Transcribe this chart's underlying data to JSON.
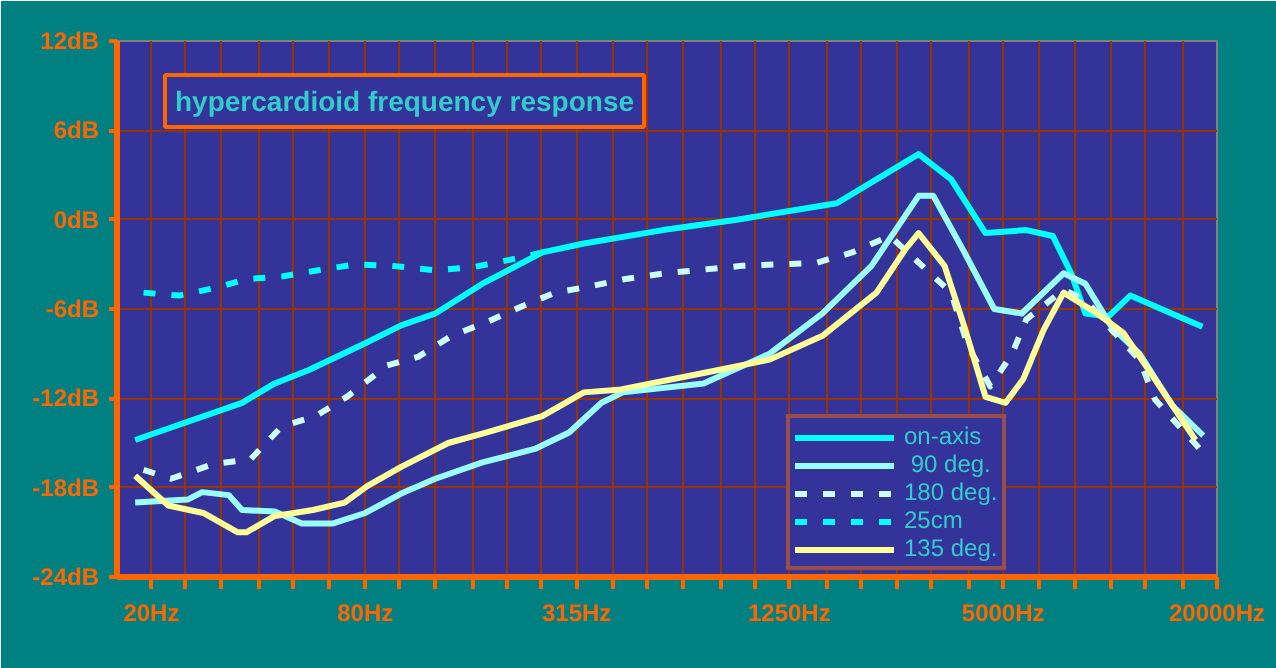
{
  "chart_data": {
    "type": "line",
    "title": "hypercardioid frequency response",
    "log": "x",
    "grid": true,
    "legend": "bottom right",
    "line_style": "solid",
    "marker": "none",
    "xlim": [
      16,
      20000
    ],
    "ylim": [
      -24,
      12
    ],
    "xticks": [
      {
        "value": 20,
        "label": "20Hz"
      },
      {
        "value": 25,
        "label": null
      },
      {
        "value": 31.5,
        "label": null
      },
      {
        "value": 40,
        "label": null
      },
      {
        "value": 50,
        "label": null
      },
      {
        "value": 63,
        "label": null
      },
      {
        "value": 80,
        "label": "80Hz"
      },
      {
        "value": 100,
        "label": null
      },
      {
        "value": 125,
        "label": null
      },
      {
        "value": 160,
        "label": null
      },
      {
        "value": 200,
        "label": null
      },
      {
        "value": 250,
        "label": null
      },
      {
        "value": 315,
        "label": "315Hz"
      },
      {
        "value": 400,
        "label": null
      },
      {
        "value": 500,
        "label": null
      },
      {
        "value": 630,
        "label": null
      },
      {
        "value": 800,
        "label": null
      },
      {
        "value": 1000,
        "label": null
      },
      {
        "value": 1250,
        "label": "1250Hz"
      },
      {
        "value": 1600,
        "label": null
      },
      {
        "value": 2000,
        "label": null
      },
      {
        "value": 2500,
        "label": null
      },
      {
        "value": 3150,
        "label": null
      },
      {
        "value": 4000,
        "label": null
      },
      {
        "value": 5000,
        "label": "5000Hz"
      },
      {
        "value": 6300,
        "label": null
      },
      {
        "value": 8000,
        "label": null
      },
      {
        "value": 10000,
        "label": null
      },
      {
        "value": 12500,
        "label": null
      },
      {
        "value": 16000,
        "label": null
      },
      {
        "value": 20000,
        "label": "20000Hz"
      }
    ],
    "yticks": [
      {
        "value": -24,
        "label": "-24dB"
      },
      {
        "value": -18,
        "label": "-18dB"
      },
      {
        "value": -12,
        "label": "-12dB"
      },
      {
        "value": -6,
        "label": "-6dB"
      },
      {
        "value": 0,
        "label": "0dB"
      },
      {
        "value": 6,
        "label": "6dB"
      },
      {
        "value": 12,
        "label": "12dB"
      }
    ],
    "series": [
      {
        "name": "on-axis",
        "color": "#00ffff",
        "x": [
          18,
          36,
          44.5,
          55.5,
          80,
          101,
          126,
          171,
          252,
          330,
          551,
          890,
          1700,
          2890,
          3570,
          4460,
          5810,
          6900,
          7770,
          8520,
          9900,
          11400,
          14900,
          18200
        ],
        "values": [
          -14.8,
          -12.3,
          -11.0,
          -10.1,
          -8.3,
          -7.1,
          -6.3,
          -4.3,
          -2.2,
          -1.6,
          -0.7,
          0,
          1.1,
          4.4,
          2.7,
          -0.9,
          -0.7,
          -1.1,
          -3.6,
          -6.3,
          -6.5,
          -5.1,
          -6.3,
          -7.2
        ]
      },
      {
        "name": " 90 deg.",
        "color": "#99ffff",
        "x": [
          18,
          25.3,
          27.8,
          33,
          36,
          44.5,
          53,
          65,
          80,
          101,
          126,
          171,
          240,
          300,
          370,
          425,
          717,
          1100,
          1550,
          2130,
          2890,
          3180,
          3890,
          4720,
          5640,
          7400,
          8520,
          10100,
          12100,
          15000,
          18300
        ],
        "values": [
          -19.0,
          -18.8,
          -18.3,
          -18.5,
          -19.5,
          -19.6,
          -20.4,
          -20.4,
          -19.7,
          -18.4,
          -17.4,
          -16.3,
          -15.4,
          -14.3,
          -12.3,
          -11.6,
          -11.0,
          -9.0,
          -6.3,
          -3.1,
          1.6,
          1.6,
          -2.2,
          -6.0,
          -6.3,
          -3.6,
          -4.3,
          -7.2,
          -9.0,
          -12.5,
          -14.5
        ]
      },
      {
        "name": "180 deg.",
        "color": "#ccffff",
        "line_style": "dashed",
        "x": [
          19,
          22.7,
          30,
          38,
          46.5,
          58,
          71,
          92,
          113,
          140,
          175,
          222,
          274,
          340,
          428,
          560,
          920,
          1490,
          1880,
          2400,
          3570,
          3980,
          4600,
          5300,
          5810,
          7400,
          8520,
          10100,
          12100,
          13400,
          17900
        ],
        "values": [
          -16.8,
          -17.4,
          -16.4,
          -16.1,
          -13.9,
          -13.2,
          -11.9,
          -9.8,
          -9.2,
          -7.8,
          -6.9,
          -5.8,
          -4.9,
          -4.5,
          -4.0,
          -3.6,
          -3.1,
          -2.9,
          -2.2,
          -1.1,
          -4.9,
          -8.5,
          -11.2,
          -9.0,
          -6.7,
          -4.7,
          -5.4,
          -7.4,
          -9.4,
          -12.1,
          -15.4
        ]
      },
      {
        "name": "25cm",
        "color": "#00ffff",
        "line_style": "dashed",
        "x": [
          19,
          23.9,
          30,
          37,
          47,
          59,
          75,
          95,
          126,
          160,
          204,
          252
        ],
        "values": [
          -4.9,
          -5.1,
          -4.6,
          -4.0,
          -3.8,
          -3.4,
          -3.0,
          -3.1,
          -3.4,
          -3.2,
          -2.7,
          -2.2
        ]
      },
      {
        "name": "135 deg.",
        "color": "#ffff99",
        "x": [
          18,
          22.3,
          28,
          35,
          37,
          44.5,
          57,
          70,
          81,
          101,
          137,
          175,
          252,
          330,
          420,
          717,
          1100,
          1550,
          2200,
          2650,
          2890,
          3420,
          3890,
          4460,
          5080,
          5700,
          6500,
          7400,
          9200,
          10900,
          12600,
          15000,
          17400
        ],
        "values": [
          -17.2,
          -19.2,
          -19.7,
          -21.0,
          -21.0,
          -19.9,
          -19.5,
          -19.0,
          -17.9,
          -16.6,
          -15.0,
          -14.3,
          -13.2,
          -11.6,
          -11.4,
          -10.3,
          -9.4,
          -7.8,
          -4.9,
          -2.0,
          -0.9,
          -3.1,
          -7.2,
          -11.9,
          -12.3,
          -10.7,
          -7.4,
          -4.9,
          -6.3,
          -7.6,
          -9.8,
          -12.5,
          -14.8
        ]
      }
    ]
  }
}
